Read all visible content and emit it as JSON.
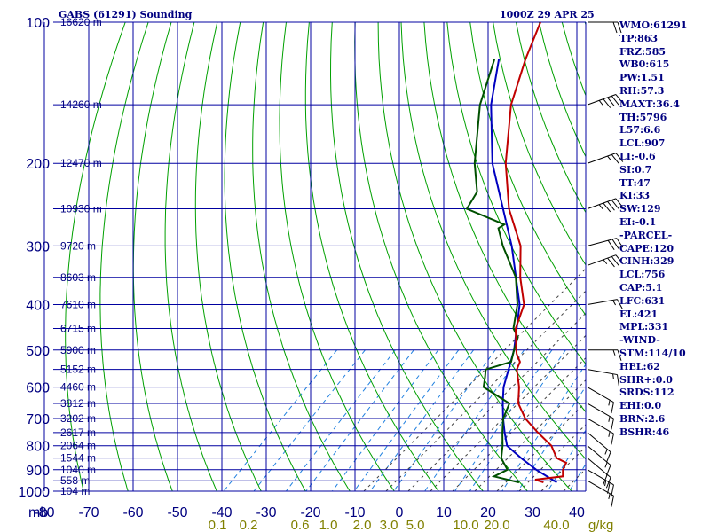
{
  "header": {
    "station": "GABS (61291) Sounding",
    "time": "1000Z 29 APR 25"
  },
  "indices": [
    "WMO:61291",
    "TP:863",
    "FRZ:585",
    "WB0:615",
    "PW:1.51",
    "RH:57.3",
    "MAXT:36.4",
    "TH:5796",
    "L57:6.6",
    "LCL:907",
    "LI:-0.6",
    "SI:0.7",
    "TT:47",
    "KI:33",
    "SW:129",
    "EI:-0.1",
    "-PARCEL-",
    "CAPE:120",
    "CINH:329",
    "LCL:756",
    "CAP:5.1",
    "LFC:631",
    "EL:421",
    "MPL:331",
    "-WIND-",
    "STM:114/10",
    "HEL:62",
    "SHR+:0.0",
    "SRDS:112",
    "EHI:0.0",
    "BRN:2.6",
    "BSHR:46"
  ],
  "colors": {
    "grid_blue": "#0000a0",
    "dry_adiabat": "#00a000",
    "moist_adiabat": "#404040",
    "mixing_ratio": "#2080e0",
    "temperature": "#c00000",
    "dewpoint": "#005000",
    "parcel": "#0000c0",
    "wind_barb": "#000000"
  },
  "chart_data": {
    "type": "skew-t",
    "xlabel_unit": "mb",
    "mixing_ratio_unit": "g/kg",
    "pressure_levels": [
      100,
      200,
      300,
      400,
      500,
      600,
      700,
      800,
      900,
      1000
    ],
    "temperature_ticks": [
      -80,
      -70,
      -60,
      -50,
      -40,
      -30,
      -20,
      -10,
      0,
      10,
      20,
      30,
      40
    ],
    "height_labels": [
      {
        "p": 100,
        "label": "16620 m"
      },
      {
        "p": 150,
        "label": "14260 m"
      },
      {
        "p": 200,
        "label": "12470 m"
      },
      {
        "p": 250,
        "label": "10930 m"
      },
      {
        "p": 300,
        "label": "9720 m"
      },
      {
        "p": 350,
        "label": "8603 m"
      },
      {
        "p": 400,
        "label": "7610 m"
      },
      {
        "p": 450,
        "label": "6715 m"
      },
      {
        "p": 500,
        "label": "5900 m"
      },
      {
        "p": 550,
        "label": "5152 m"
      },
      {
        "p": 600,
        "label": "4460 m"
      },
      {
        "p": 650,
        "label": "3812 m"
      },
      {
        "p": 700,
        "label": "3202 m"
      },
      {
        "p": 750,
        "label": "2617 m"
      },
      {
        "p": 800,
        "label": "2064 m"
      },
      {
        "p": 850,
        "label": "1544 m"
      },
      {
        "p": 900,
        "label": "1040 m"
      },
      {
        "p": 950,
        "label": "558 m"
      },
      {
        "p": 1000,
        "label": "104 m"
      }
    ],
    "mixing_ratio_labels": [
      "0.1",
      "0.2",
      "0.6",
      "1.0",
      "2.0",
      "3.0",
      "5.0",
      "10.0",
      "20.0",
      "40.0"
    ],
    "temperature_profile": [
      {
        "p": 958,
        "t": 28.5
      },
      {
        "p": 945,
        "t": 26.0
      },
      {
        "p": 930,
        "t": 31.5
      },
      {
        "p": 900,
        "t": 30.0
      },
      {
        "p": 870,
        "t": 29.2
      },
      {
        "p": 850,
        "t": 26.0
      },
      {
        "p": 800,
        "t": 22.0
      },
      {
        "p": 750,
        "t": 16.0
      },
      {
        "p": 700,
        "t": 10.0
      },
      {
        "p": 650,
        "t": 5.0
      },
      {
        "p": 600,
        "t": 1.5
      },
      {
        "p": 550,
        "t": -3.0
      },
      {
        "p": 530,
        "t": -4.0
      },
      {
        "p": 510,
        "t": -6.5
      },
      {
        "p": 500,
        "t": -7.5
      },
      {
        "p": 450,
        "t": -12.5
      },
      {
        "p": 400,
        "t": -16.0
      },
      {
        "p": 350,
        "t": -23.0
      },
      {
        "p": 300,
        "t": -30.0
      },
      {
        "p": 250,
        "t": -41.0
      },
      {
        "p": 200,
        "t": -52.0
      },
      {
        "p": 150,
        "t": -64.0
      },
      {
        "p": 120,
        "t": -71.0
      },
      {
        "p": 100,
        "t": -76.0
      }
    ],
    "dewpoint_profile": [
      {
        "p": 958,
        "t": 23.0
      },
      {
        "p": 930,
        "t": 16.0
      },
      {
        "p": 900,
        "t": 17.5
      },
      {
        "p": 850,
        "t": 13.5
      },
      {
        "p": 800,
        "t": 11.0
      },
      {
        "p": 750,
        "t": 8.0
      },
      {
        "p": 700,
        "t": 5.0
      },
      {
        "p": 650,
        "t": 3.0
      },
      {
        "p": 600,
        "t": -6.5
      },
      {
        "p": 570,
        "t": -8.5
      },
      {
        "p": 550,
        "t": -10.0
      },
      {
        "p": 530,
        "t": -6.0
      },
      {
        "p": 500,
        "t": -8.0
      },
      {
        "p": 470,
        "t": -10.0
      },
      {
        "p": 450,
        "t": -13.0
      },
      {
        "p": 400,
        "t": -17.5
      },
      {
        "p": 350,
        "t": -24.0
      },
      {
        "p": 300,
        "t": -34.0
      },
      {
        "p": 275,
        "t": -39.0
      },
      {
        "p": 270,
        "t": -38.5
      },
      {
        "p": 250,
        "t": -50.5
      },
      {
        "p": 230,
        "t": -52.0
      },
      {
        "p": 200,
        "t": -59.0
      },
      {
        "p": 150,
        "t": -71.0
      },
      {
        "p": 120,
        "t": -78.0
      }
    ],
    "parcel_profile": [
      {
        "p": 958,
        "t": 31.5
      },
      {
        "p": 900,
        "t": 24.0
      },
      {
        "p": 850,
        "t": 18.0
      },
      {
        "p": 800,
        "t": 12.0
      },
      {
        "p": 750,
        "t": 8.5
      },
      {
        "p": 700,
        "t": 5.0
      },
      {
        "p": 650,
        "t": 1.5
      },
      {
        "p": 600,
        "t": -2.0
      },
      {
        "p": 500,
        "t": -8.0
      },
      {
        "p": 400,
        "t": -17.0
      },
      {
        "p": 300,
        "t": -32.0
      },
      {
        "p": 200,
        "t": -55.0
      },
      {
        "p": 150,
        "t": -68.5
      },
      {
        "p": 120,
        "t": -77.0
      }
    ],
    "wind_barbs": [
      {
        "p": 100,
        "dir": 270,
        "spd": 20
      },
      {
        "p": 150,
        "dir": 250,
        "spd": 45
      },
      {
        "p": 200,
        "dir": 250,
        "spd": 25
      },
      {
        "p": 250,
        "dir": 250,
        "spd": 45
      },
      {
        "p": 300,
        "dir": 255,
        "spd": 30
      },
      {
        "p": 330,
        "dir": 250,
        "spd": 35
      },
      {
        "p": 400,
        "dir": 260,
        "spd": 15
      },
      {
        "p": 500,
        "dir": 270,
        "spd": 15
      },
      {
        "p": 550,
        "dir": 280,
        "spd": 15
      },
      {
        "p": 600,
        "dir": 300,
        "spd": 15
      },
      {
        "p": 650,
        "dir": 300,
        "spd": 15
      },
      {
        "p": 700,
        "dir": 300,
        "spd": 15
      },
      {
        "p": 750,
        "dir": 310,
        "spd": 15
      },
      {
        "p": 800,
        "dir": 310,
        "spd": 15
      },
      {
        "p": 850,
        "dir": 310,
        "spd": 20
      },
      {
        "p": 900,
        "dir": 300,
        "spd": 25
      },
      {
        "p": 950,
        "dir": 300,
        "spd": 15
      }
    ]
  }
}
